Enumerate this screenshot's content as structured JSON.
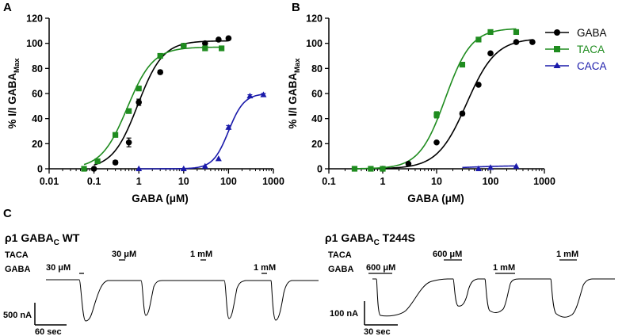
{
  "panels": {
    "a_label": "A",
    "b_label": "B",
    "c_label": "C"
  },
  "legend": [
    {
      "name": "GABA",
      "color": "#000000",
      "marker": "circle"
    },
    {
      "name": "TACA",
      "color": "#1f8c1f",
      "marker": "square"
    },
    {
      "name": "CACA",
      "color": "#1a1aaa",
      "marker": "triangle"
    }
  ],
  "chart_data": [
    {
      "panel": "A",
      "type": "scatter",
      "xlabel": "GABA (μM)",
      "ylabel_main": "% I/I GABA",
      "ylabel_sub": "Max",
      "xscale": "log",
      "xlim": [
        0.01,
        1000
      ],
      "ylim": [
        0,
        120
      ],
      "xticks": [
        0.01,
        0.1,
        1,
        10,
        100,
        1000
      ],
      "xticklabels": [
        "0.01",
        "0.1",
        "1",
        "10",
        "100",
        "1000"
      ],
      "yticks": [
        0,
        20,
        40,
        60,
        80,
        100,
        120
      ],
      "series": [
        {
          "name": "GABA",
          "color": "#000000",
          "marker": "circle",
          "x": [
            0.1,
            0.3,
            0.6,
            1,
            3,
            10,
            30,
            60,
            100
          ],
          "y": [
            0,
            5,
            21,
            53,
            77,
            98,
            100,
            103,
            104
          ],
          "yerr": [
            0,
            1.5,
            3.5,
            2.5,
            1.5,
            1,
            1,
            1,
            1
          ],
          "fit": {
            "ec50": 0.95,
            "hill": 1.55,
            "max": 102
          }
        },
        {
          "name": "TACA",
          "color": "#1f8c1f",
          "marker": "square",
          "x": [
            0.06,
            0.12,
            0.3,
            0.6,
            1,
            3,
            10,
            30,
            70
          ],
          "y": [
            0,
            6,
            27,
            46,
            64,
            90,
            98,
            96,
            96
          ],
          "yerr": [
            0,
            1.5,
            1.5,
            1.5,
            1.5,
            1,
            1,
            1,
            1
          ],
          "fit": {
            "ec50": 0.55,
            "hill": 1.5,
            "max": 97
          }
        },
        {
          "name": "CACA",
          "color": "#1a1aaa",
          "marker": "triangle",
          "x": [
            1,
            10,
            30,
            60,
            100,
            300,
            600
          ],
          "y": [
            0,
            0,
            2,
            8,
            33,
            58,
            59
          ],
          "yerr": [
            0,
            0,
            0,
            0,
            1.5,
            1,
            1
          ],
          "fit": {
            "ec50": 100,
            "hill": 2.5,
            "max": 60
          }
        }
      ]
    },
    {
      "panel": "B",
      "type": "scatter",
      "xlabel": "GABA (μM)",
      "ylabel_main": "% I/I GABA",
      "ylabel_sub": "Max",
      "xscale": "log",
      "xlim": [
        0.1,
        1000
      ],
      "ylim": [
        0,
        120
      ],
      "xticks": [
        0.1,
        1,
        10,
        100,
        1000
      ],
      "xticklabels": [
        "0.1",
        "1",
        "10",
        "100",
        "1000"
      ],
      "yticks": [
        0,
        20,
        40,
        60,
        80,
        100,
        120
      ],
      "series": [
        {
          "name": "GABA",
          "color": "#000000",
          "marker": "circle",
          "x": [
            1,
            3,
            10,
            30,
            60,
            100,
            300,
            600
          ],
          "y": [
            0,
            4,
            21,
            44,
            67,
            92,
            101,
            101
          ],
          "yerr": [
            0,
            1,
            1,
            1.5,
            1,
            1,
            1,
            1
          ],
          "fit": {
            "ec50": 36,
            "hill": 1.6,
            "max": 104
          }
        },
        {
          "name": "TACA",
          "color": "#1f8c1f",
          "marker": "square",
          "x": [
            0.3,
            0.6,
            1,
            10,
            30,
            60,
            100,
            300
          ],
          "y": [
            0,
            0,
            0,
            43,
            83,
            103,
            109,
            109
          ],
          "yerr": [
            0,
            0,
            0,
            2.5,
            1,
            1,
            1,
            1
          ],
          "fit": {
            "ec50": 14.5,
            "hill": 1.8,
            "max": 112
          }
        },
        {
          "name": "CACA",
          "color": "#1a1aaa",
          "marker": "triangle",
          "x": [
            60,
            100,
            300
          ],
          "y": [
            0,
            1,
            2
          ],
          "yerr": [
            0,
            0,
            0
          ],
          "fit": {
            "ec50": 40,
            "hill": 1.2,
            "max": 2.5,
            "start": 30,
            "end": 320
          }
        }
      ]
    }
  ],
  "traces": {
    "wt": {
      "title_main": "ρ1 GABA",
      "title_sub": "C",
      "title_rest": " WT",
      "taca_label": "TACA",
      "gaba_label": "GABA",
      "applications": [
        {
          "drug": "GABA",
          "conc": "30 μM"
        },
        {
          "drug": "TACA",
          "conc": "30 μM"
        },
        {
          "drug": "TACA",
          "conc": "1 mM"
        },
        {
          "drug": "GABA",
          "conc": "1 mM"
        }
      ],
      "scale_current": "500 nA",
      "scale_time": "60 sec"
    },
    "t244s": {
      "title_main": "ρ1 GABA",
      "title_sub": "C",
      "title_rest": " T244S",
      "taca_label": "TACA",
      "gaba_label": "GABA",
      "applications": [
        {
          "drug": "GABA",
          "conc": "600 μM"
        },
        {
          "drug": "TACA",
          "conc": "600 μM"
        },
        {
          "drug": "GABA",
          "conc": "1 mM"
        },
        {
          "drug": "TACA",
          "conc": "1 mM"
        }
      ],
      "scale_current": "100 nA",
      "scale_time": "30 sec"
    }
  }
}
